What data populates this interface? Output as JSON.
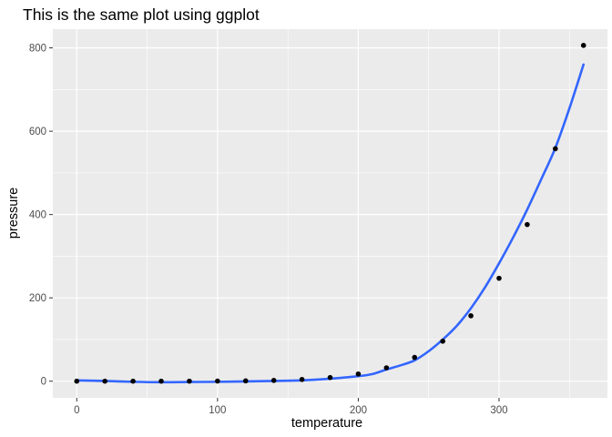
{
  "chart_data": {
    "type": "scatter",
    "title": "This is the same plot using ggplot",
    "xlabel": "temperature",
    "ylabel": "pressure",
    "xlim": [
      -17,
      377
    ],
    "ylim": [
      -40,
      845
    ],
    "x_ticks": [
      0,
      100,
      200,
      300
    ],
    "x_tick_labels": [
      "0",
      "100",
      "200",
      "300"
    ],
    "y_ticks": [
      0,
      200,
      400,
      600,
      800
    ],
    "y_tick_labels": [
      "0",
      "200",
      "400",
      "600",
      "800"
    ],
    "grid": true,
    "legend": "none",
    "colors": {
      "panel": "#EBEBEB",
      "grid": "#FFFFFF",
      "points": "#000000",
      "smooth": "#3366FF",
      "tick_text": "#4D4D4D",
      "tick_mark": "#333333"
    },
    "points": {
      "x": [
        0,
        20,
        40,
        60,
        80,
        100,
        120,
        140,
        160,
        180,
        200,
        220,
        240,
        260,
        280,
        300,
        320,
        340,
        360
      ],
      "y": [
        0.0002,
        0.0012,
        0.006,
        0.03,
        0.09,
        0.27,
        0.75,
        1.85,
        4.2,
        8.8,
        17.3,
        32.1,
        57,
        96,
        157,
        247,
        376,
        558,
        806
      ]
    },
    "smooth": {
      "x": [
        0,
        20,
        40,
        60,
        80,
        100,
        120,
        140,
        160,
        180,
        200,
        210,
        220,
        230,
        240,
        250,
        260,
        270,
        280,
        290,
        300,
        310,
        320,
        330,
        340,
        350,
        360
      ],
      "y": [
        2,
        0.5,
        -1.5,
        -2.5,
        -2,
        -1.5,
        -0.5,
        0.5,
        2,
        6,
        12,
        17,
        28,
        38,
        50,
        72,
        100,
        133,
        175,
        225,
        283,
        345,
        412,
        485,
        560,
        655,
        760
      ]
    }
  }
}
